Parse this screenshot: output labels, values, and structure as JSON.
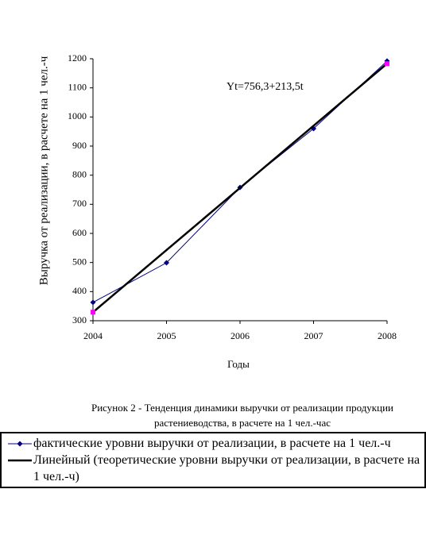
{
  "chart_data": {
    "type": "line",
    "y_label": "Выручка от реализации, в расчете на 1 чел.-ч",
    "x_label": "Годы",
    "annotation": "Yt=756,3+213,5t",
    "caption": "Рисунок 2 - Тенденция динамики выручки от реализации продукции растениеводства, в расчете на 1 чел.-час",
    "xlim": [
      2004,
      2008
    ],
    "xticks": [
      2004,
      2005,
      2006,
      2007,
      2008
    ],
    "ylim": [
      300,
      1200
    ],
    "yticks": [
      300,
      400,
      500,
      600,
      700,
      800,
      900,
      1000,
      1100,
      1200
    ],
    "grid": false,
    "series": [
      {
        "name": "фактические уровни выручки от реализации, в расчете на 1 чел.-ч",
        "color": "#000080",
        "marker_color": "#000080",
        "marker": "diamond",
        "width": 1,
        "x": [
          2004,
          2005,
          2006,
          2007,
          2008
        ],
        "values": [
          363,
          499,
          758,
          960,
          1192
        ]
      },
      {
        "name": "Линейный (теоретические уровни выручки от реализации, в расчете на 1 чел.-ч)",
        "color": "#000000",
        "marker_color": "#ff00ff",
        "marker": "square",
        "width": 2.5,
        "x": [
          2004,
          2008
        ],
        "values": [
          329.3,
          1183.3
        ]
      }
    ]
  }
}
